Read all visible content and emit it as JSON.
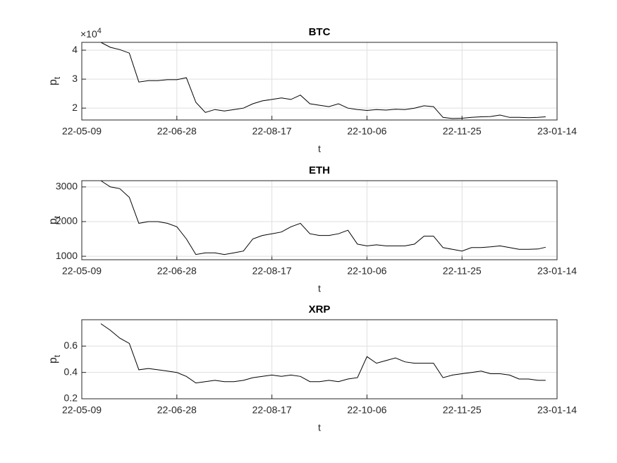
{
  "chart_data": [
    {
      "type": "line",
      "title": "BTC",
      "xlabel": "t",
      "ylabel": "p",
      "ylabel_subscript": "t",
      "y_scale_base": "×10",
      "y_scale_exponent": "4",
      "color": "#000000",
      "grid": true,
      "x": [
        "22-05-19",
        "22-05-24",
        "22-05-29",
        "22-06-03",
        "22-06-08",
        "22-06-13",
        "22-06-18",
        "22-06-23",
        "22-06-28",
        "22-07-03",
        "22-07-08",
        "22-07-13",
        "22-07-18",
        "22-07-23",
        "22-07-28",
        "22-08-02",
        "22-08-07",
        "22-08-12",
        "22-08-17",
        "22-08-22",
        "22-08-27",
        "22-09-01",
        "22-09-06",
        "22-09-11",
        "22-09-16",
        "22-09-21",
        "22-09-26",
        "22-10-01",
        "22-10-06",
        "22-10-11",
        "22-10-16",
        "22-10-21",
        "22-10-26",
        "22-10-31",
        "22-11-05",
        "22-11-10",
        "22-11-15",
        "22-11-20",
        "22-11-25",
        "22-11-30",
        "22-12-05",
        "22-12-10",
        "22-12-15",
        "22-12-20",
        "22-12-25",
        "22-12-30",
        "23-01-04",
        "23-01-08"
      ],
      "values": [
        42700,
        41000,
        40200,
        39000,
        29000,
        29500,
        29500,
        29800,
        29800,
        30500,
        22000,
        18500,
        19500,
        19000,
        19500,
        20000,
        21500,
        22500,
        23000,
        23500,
        23000,
        24500,
        21500,
        21000,
        20500,
        21500,
        20000,
        19500,
        19200,
        19500,
        19300,
        19600,
        19500,
        20000,
        20800,
        20500,
        16800,
        16400,
        16500,
        16800,
        17000,
        17100,
        17600,
        16800,
        16800,
        16700,
        16800,
        17000
      ],
      "xlim": [
        "22-05-09",
        "23-01-14"
      ],
      "xticks": [
        "22-05-09",
        "22-06-28",
        "22-08-17",
        "22-10-06",
        "22-11-25",
        "23-01-14"
      ],
      "ylim": [
        15900,
        42700
      ],
      "yticks": [
        {
          "value": 20000,
          "label": "2"
        },
        {
          "value": 30000,
          "label": "3"
        },
        {
          "value": 40000,
          "label": "4"
        }
      ]
    },
    {
      "type": "line",
      "title": "ETH",
      "xlabel": "t",
      "ylabel": "p",
      "ylabel_subscript": "t",
      "color": "#000000",
      "grid": true,
      "x": [
        "22-05-19",
        "22-05-24",
        "22-05-29",
        "22-06-03",
        "22-06-08",
        "22-06-13",
        "22-06-18",
        "22-06-23",
        "22-06-28",
        "22-07-03",
        "22-07-08",
        "22-07-13",
        "22-07-18",
        "22-07-23",
        "22-07-28",
        "22-08-02",
        "22-08-07",
        "22-08-12",
        "22-08-17",
        "22-08-22",
        "22-08-27",
        "22-09-01",
        "22-09-06",
        "22-09-11",
        "22-09-16",
        "22-09-21",
        "22-09-26",
        "22-10-01",
        "22-10-06",
        "22-10-11",
        "22-10-16",
        "22-10-21",
        "22-10-26",
        "22-10-31",
        "22-11-05",
        "22-11-10",
        "22-11-15",
        "22-11-20",
        "22-11-25",
        "22-11-30",
        "22-12-05",
        "22-12-10",
        "22-12-15",
        "22-12-20",
        "22-12-25",
        "22-12-30",
        "23-01-04",
        "23-01-08"
      ],
      "values": [
        3180,
        3000,
        2950,
        2700,
        1950,
        2000,
        2000,
        1950,
        1850,
        1500,
        1050,
        1100,
        1100,
        1050,
        1100,
        1150,
        1500,
        1600,
        1650,
        1700,
        1850,
        1950,
        1650,
        1600,
        1600,
        1650,
        1750,
        1350,
        1300,
        1330,
        1300,
        1300,
        1300,
        1350,
        1580,
        1580,
        1250,
        1200,
        1150,
        1250,
        1250,
        1270,
        1300,
        1250,
        1200,
        1200,
        1210,
        1260
      ],
      "xlim": [
        "22-05-09",
        "23-01-14"
      ],
      "xticks": [
        "22-05-09",
        "22-06-28",
        "22-08-17",
        "22-10-06",
        "22-11-25",
        "23-01-14"
      ],
      "ylim": [
        900,
        3180
      ],
      "yticks": [
        1000,
        2000,
        3000
      ]
    },
    {
      "type": "line",
      "title": "XRP",
      "xlabel": "t",
      "ylabel": "p",
      "ylabel_subscript": "t",
      "color": "#000000",
      "grid": true,
      "x": [
        "22-05-19",
        "22-05-24",
        "22-05-29",
        "22-06-03",
        "22-06-08",
        "22-06-13",
        "22-06-18",
        "22-06-23",
        "22-06-28",
        "22-07-03",
        "22-07-08",
        "22-07-13",
        "22-07-18",
        "22-07-23",
        "22-07-28",
        "22-08-02",
        "22-08-07",
        "22-08-12",
        "22-08-17",
        "22-08-22",
        "22-08-27",
        "22-09-01",
        "22-09-06",
        "22-09-11",
        "22-09-16",
        "22-09-21",
        "22-09-26",
        "22-10-01",
        "22-10-06",
        "22-10-11",
        "22-10-16",
        "22-10-21",
        "22-10-26",
        "22-10-31",
        "22-11-05",
        "22-11-10",
        "22-11-15",
        "22-11-20",
        "22-11-25",
        "22-11-30",
        "22-12-05",
        "22-12-10",
        "22-12-15",
        "22-12-20",
        "22-12-25",
        "22-12-30",
        "23-01-04",
        "23-01-08"
      ],
      "values": [
        0.77,
        0.72,
        0.66,
        0.62,
        0.42,
        0.43,
        0.42,
        0.41,
        0.4,
        0.37,
        0.32,
        0.33,
        0.34,
        0.33,
        0.33,
        0.34,
        0.36,
        0.37,
        0.38,
        0.37,
        0.38,
        0.37,
        0.33,
        0.33,
        0.34,
        0.33,
        0.35,
        0.36,
        0.52,
        0.47,
        0.49,
        0.51,
        0.48,
        0.47,
        0.47,
        0.47,
        0.36,
        0.38,
        0.39,
        0.4,
        0.41,
        0.39,
        0.39,
        0.38,
        0.35,
        0.35,
        0.34,
        0.34
      ],
      "xlim": [
        "22-05-09",
        "23-01-14"
      ],
      "xticks": [
        "22-05-09",
        "22-06-28",
        "22-08-17",
        "22-10-06",
        "22-11-25",
        "23-01-14"
      ],
      "ylim": [
        0.2,
        0.8
      ],
      "yticks": [
        0.2,
        0.4,
        0.6
      ]
    }
  ]
}
